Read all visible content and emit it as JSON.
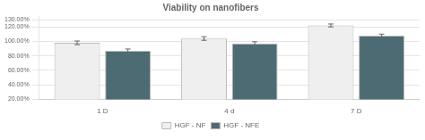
{
  "chart_data": {
    "type": "bar",
    "title": "Viability on nanofibers",
    "categories": [
      "1 D",
      "4 d",
      "7 D"
    ],
    "series": [
      {
        "name": "HGF - NF",
        "color": "#efefef",
        "values": [
          98.0,
          104.0,
          122.0
        ],
        "errors": [
          2.5,
          2.5,
          2.0
        ]
      },
      {
        "name": "HGF - NFE",
        "color": "#4d6b73",
        "values": [
          87.0,
          97.0,
          108.0
        ],
        "errors": [
          2.5,
          2.5,
          2.0
        ]
      }
    ],
    "ylim": [
      20,
      135
    ],
    "yticks": [
      {
        "value": 20,
        "label": "20.00%"
      },
      {
        "value": 40,
        "label": "40.00%"
      },
      {
        "value": 60,
        "label": "60.00%"
      },
      {
        "value": 80,
        "label": "80.00%"
      },
      {
        "value": 100,
        "label": "100.00%"
      },
      {
        "value": 120,
        "label": "120.00%"
      },
      {
        "value": 130,
        "label": "130.00%"
      }
    ],
    "grid": true,
    "legend": "bottom"
  }
}
